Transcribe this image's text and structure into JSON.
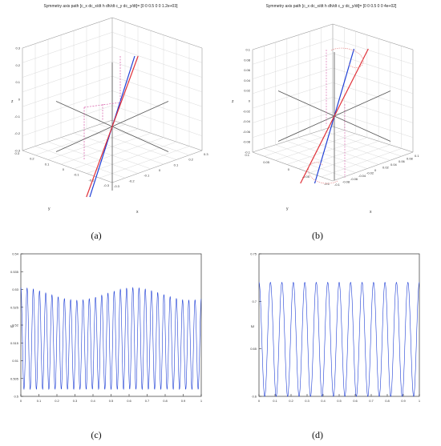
{
  "captions": {
    "a": "(a)",
    "b": "(b)",
    "c": "(c)",
    "d": "(d)"
  },
  "colors": {
    "blue": "#1f3fd6",
    "red": "#e0323a",
    "magenta": "#d65aa6",
    "grid": "#cfcfcf",
    "axis": "#555555"
  },
  "chart_data": [
    {
      "id": "a",
      "type": "line",
      "title": "Symmetry axis path [c_x  dc_x/dt  h  dh/dt  c_y  dc_y/dt]= [0 0 0.5 0 0 1.2e+03]",
      "xlabel": "x",
      "ylabel": "y",
      "zlabel": "z",
      "xticks": [
        "-0.3",
        "-0.2",
        "-0.1",
        "0",
        "0.1",
        "0.2",
        "0.3"
      ],
      "yticks": [
        "0.3",
        "0.2",
        "0.1",
        "0",
        "-0.1",
        "-0.2",
        "-0.3"
      ],
      "zticks": [
        "0.3",
        "0.2",
        "0.1",
        "0",
        "-0.1",
        "-0.2",
        "-0.3"
      ],
      "series": [
        {
          "color": "blue",
          "x": [
            -0.02,
            0.0,
            0.02
          ],
          "y": [
            0.0,
            0.0,
            0.0
          ],
          "z": [
            -0.3,
            0.0,
            0.3
          ]
        },
        {
          "color": "red",
          "x": [
            -0.02,
            0.0,
            0.02
          ],
          "y": [
            0.0,
            0.0,
            0.0
          ],
          "z": [
            -0.3,
            0.0,
            0.3
          ]
        }
      ]
    },
    {
      "id": "b",
      "type": "line",
      "title": "Symmetry axis path [c_x  dc_x/dt  h  dh/dt  c_y  dc_y/dt]= [0 0 0.5 0 0 4e+02]",
      "xlabel": "x",
      "ylabel": "y",
      "zlabel": "z",
      "xticks": [
        "-0.1",
        "-0.08",
        "-0.06",
        "-0.04",
        "-0.02",
        "0",
        "0.02",
        "0.04",
        "0.06",
        "0.08",
        "0.1"
      ],
      "yticks": [
        "0.1",
        "0.05",
        "0",
        "-0.05",
        "-0.1"
      ],
      "zticks": [
        "0.1",
        "0.08",
        "0.06",
        "0.04",
        "0.02",
        "0",
        "-0.02",
        "-0.04",
        "-0.06",
        "-0.08",
        "-0.1"
      ],
      "series": [
        {
          "color": "blue",
          "x": [
            -0.01,
            0.0,
            0.01
          ],
          "y": [
            0.0,
            0.0,
            0.0
          ],
          "z": [
            -0.1,
            0.0,
            0.1
          ]
        },
        {
          "color": "red",
          "x": [
            -0.015,
            0.0,
            0.015
          ],
          "y": [
            0.0,
            0.0,
            0.0
          ],
          "z": [
            -0.1,
            0.0,
            0.1
          ]
        }
      ]
    },
    {
      "id": "c",
      "type": "line",
      "xlabel": "",
      "ylabel": "ω",
      "xlim": [
        0,
        1
      ],
      "ylim": [
        0.5,
        0.54
      ],
      "xticks": [
        "0",
        "0.1",
        "0.2",
        "0.3",
        "0.4",
        "0.5",
        "0.6",
        "0.7",
        "0.8",
        "0.9",
        "1"
      ],
      "yticks": [
        "0.54",
        "0.535",
        "0.53",
        "0.525",
        "0.52",
        "0.515",
        "0.51",
        "0.505",
        "0.5"
      ],
      "series": [
        {
          "color": "blue",
          "cycles": 29,
          "min": 0.502,
          "max": 0.5305,
          "max_alt": 0.527
        }
      ]
    },
    {
      "id": "d",
      "type": "line",
      "xlabel": "",
      "ylabel": "ω",
      "xlim": [
        0,
        1
      ],
      "ylim": [
        0.6,
        0.75
      ],
      "xticks": [
        "0",
        "0.1",
        "0.2",
        "0.3",
        "0.4",
        "0.5",
        "0.6",
        "0.7",
        "0.8",
        "0.9",
        "1"
      ],
      "yticks": [
        "0.75",
        "0.7",
        "0.65",
        "0.6"
      ],
      "series": [
        {
          "color": "blue",
          "cycles": 14,
          "min": 0.6,
          "max": 0.72
        }
      ]
    }
  ]
}
